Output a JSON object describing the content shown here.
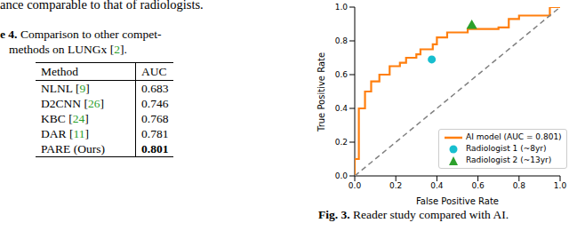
{
  "body_text": "ance comparable to that of radiologists.",
  "table_caption": {
    "label": "e 4.",
    "text": "Comparison to other compet-",
    "line2": {
      "before": "methods on LUNGx ",
      "ref": "[2]",
      "after": "."
    }
  },
  "table": {
    "header": [
      "Method",
      "AUC"
    ],
    "rows": [
      {
        "method": "NLNL",
        "ref": "[9]",
        "auc": 0.683
      },
      {
        "method": "D2CNN",
        "ref": "[26]",
        "auc": 0.746
      },
      {
        "method": "KBC",
        "ref": "[24]",
        "auc": 0.768
      },
      {
        "method": "DAR",
        "ref": "[11]",
        "auc": 0.781
      },
      {
        "method": "PARE (Ours)",
        "auc": 0.801
      }
    ]
  },
  "figure_caption": {
    "label": "Fig. 3.",
    "text": "Reader study compared with AI."
  },
  "chart_data": {
    "type": "line",
    "xlabel": "False Positive Rate",
    "ylabel": "True Positive Rate",
    "xlim": [
      0,
      1
    ],
    "ylim": [
      0,
      1
    ],
    "xticks": [
      {
        "value": 0,
        "label": "0.0"
      },
      0.2,
      0.4,
      0.6,
      0.8,
      {
        "value": 1,
        "label": "1.0"
      }
    ],
    "yticks": [
      {
        "value": 0,
        "label": "0.0"
      },
      0.2,
      0.4,
      0.6,
      0.8,
      {
        "value": 1,
        "label": "1.0"
      }
    ],
    "legend": "lower right",
    "series": [
      {
        "name": "AI model (AUC = 0.801)",
        "type": "line",
        "color": "#ff7f0e",
        "x": [
          0,
          0,
          0.02,
          0.02,
          0.05,
          0.05,
          0.08,
          0.08,
          0.12,
          0.12,
          0.17,
          0.17,
          0.22,
          0.22,
          0.25,
          0.25,
          0.3,
          0.3,
          0.32,
          0.32,
          0.38,
          0.38,
          0.4,
          0.4,
          0.45,
          0.45,
          0.55,
          0.55,
          0.7,
          0.7,
          0.75,
          0.75,
          0.8,
          0.8,
          0.95,
          0.95,
          1.0
        ],
        "values": [
          0,
          0.1,
          0.1,
          0.4,
          0.4,
          0.5,
          0.5,
          0.56,
          0.56,
          0.6,
          0.6,
          0.65,
          0.65,
          0.67,
          0.67,
          0.7,
          0.7,
          0.72,
          0.72,
          0.75,
          0.75,
          0.78,
          0.78,
          0.82,
          0.82,
          0.85,
          0.85,
          0.87,
          0.87,
          0.88,
          0.88,
          0.93,
          0.93,
          0.95,
          0.95,
          1.0,
          1.0
        ]
      },
      {
        "type": "line",
        "line_style": "dashed",
        "color": "#808080",
        "x": [
          0,
          1
        ],
        "values": [
          0,
          1
        ]
      },
      {
        "name": "Radiologist 1 (~8yr)",
        "type": "scatter",
        "marker": "circle",
        "color": "#17becf",
        "x": [
          0.375
        ],
        "values": [
          0.69
        ]
      },
      {
        "name": "Radiologist 2 (~13yr)",
        "type": "scatter",
        "marker": "triangle",
        "color": "#2ca02c",
        "x": [
          0.57
        ],
        "values": [
          0.89
        ]
      }
    ]
  }
}
